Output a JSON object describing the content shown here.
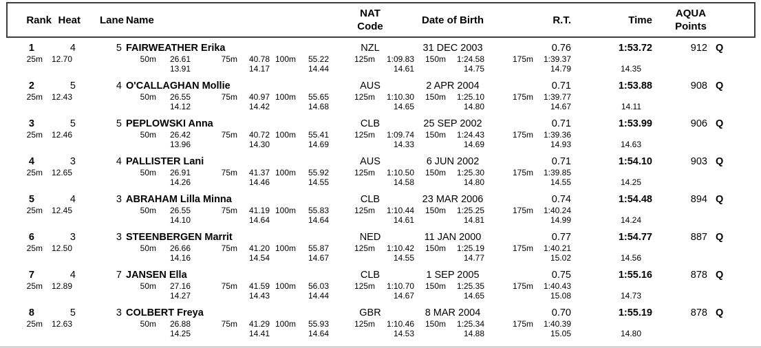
{
  "header": {
    "rank": "Rank",
    "heat": "Heat",
    "lane": "Lane",
    "name": "Name",
    "nat_line1": "NAT",
    "nat_line2": "Code",
    "dob": "Date of Birth",
    "rt": "R.T.",
    "time": "Time",
    "points_line1": "AQUA",
    "points_line2": "Points"
  },
  "split_labels": [
    "25m",
    "50m",
    "75m",
    "100m",
    "125m",
    "150m",
    "175m"
  ],
  "rows": [
    {
      "rank": "1",
      "heat": "4",
      "lane": "5",
      "name": "FAIRWEATHER Erika",
      "nat": "NZL",
      "dob": "31 DEC 2003",
      "rt": "0.76",
      "time": "1:53.72",
      "points": "912",
      "q": "Q",
      "splits": [
        "12.70",
        "26.61",
        "40.78",
        "55.22",
        "1:09.83",
        "1:24.58",
        "1:39.37"
      ],
      "laps": [
        "13.91",
        "14.17",
        "14.44",
        "14.61",
        "14.75",
        "14.79"
      ],
      "last_lap": "14.35"
    },
    {
      "rank": "2",
      "heat": "5",
      "lane": "4",
      "name": "O'CALLAGHAN Mollie",
      "nat": "AUS",
      "dob": "2 APR 2004",
      "rt": "0.71",
      "time": "1:53.88",
      "points": "908",
      "q": "Q",
      "splits": [
        "12.43",
        "26.55",
        "40.97",
        "55.65",
        "1:10.30",
        "1:25.10",
        "1:39.77"
      ],
      "laps": [
        "14.12",
        "14.42",
        "14.68",
        "14.65",
        "14.80",
        "14.67"
      ],
      "last_lap": "14.11"
    },
    {
      "rank": "3",
      "heat": "5",
      "lane": "5",
      "name": "PEPLOWSKI Anna",
      "nat": "CLB",
      "dob": "25 SEP 2002",
      "rt": "0.71",
      "time": "1:53.99",
      "points": "906",
      "q": "Q",
      "splits": [
        "12.46",
        "26.42",
        "40.72",
        "55.41",
        "1:09.74",
        "1:24.43",
        "1:39.36"
      ],
      "laps": [
        "13.96",
        "14.30",
        "14.69",
        "14.33",
        "14.69",
        "14.93"
      ],
      "last_lap": "14.63"
    },
    {
      "rank": "4",
      "heat": "3",
      "lane": "4",
      "name": "PALLISTER Lani",
      "nat": "AUS",
      "dob": "6 JUN 2002",
      "rt": "0.71",
      "time": "1:54.10",
      "points": "903",
      "q": "Q",
      "splits": [
        "12.65",
        "26.91",
        "41.37",
        "55.92",
        "1:10.50",
        "1:25.30",
        "1:39.85"
      ],
      "laps": [
        "14.26",
        "14.46",
        "14.55",
        "14.58",
        "14.80",
        "14.55"
      ],
      "last_lap": "14.25"
    },
    {
      "rank": "5",
      "heat": "4",
      "lane": "3",
      "name": "ABRAHAM Lilla Minna",
      "nat": "CLB",
      "dob": "23 MAR 2006",
      "rt": "0.74",
      "time": "1:54.48",
      "points": "894",
      "q": "Q",
      "splits": [
        "12.45",
        "26.55",
        "41.19",
        "55.83",
        "1:10.44",
        "1:25.25",
        "1:40.24"
      ],
      "laps": [
        "14.10",
        "14.64",
        "14.64",
        "14.61",
        "14.81",
        "14.99"
      ],
      "last_lap": "14.24"
    },
    {
      "rank": "6",
      "heat": "3",
      "lane": "3",
      "name": "STEENBERGEN Marrit",
      "nat": "NED",
      "dob": "11 JAN 2000",
      "rt": "0.77",
      "time": "1:54.77",
      "points": "887",
      "q": "Q",
      "splits": [
        "12.50",
        "26.66",
        "41.20",
        "55.87",
        "1:10.42",
        "1:25.19",
        "1:40.21"
      ],
      "laps": [
        "14.16",
        "14.54",
        "14.67",
        "14.55",
        "14.77",
        "15.02"
      ],
      "last_lap": "14.56"
    },
    {
      "rank": "7",
      "heat": "4",
      "lane": "7",
      "name": "JANSEN Ella",
      "nat": "CLB",
      "dob": "1 SEP 2005",
      "rt": "0.75",
      "time": "1:55.16",
      "points": "878",
      "q": "Q",
      "splits": [
        "12.89",
        "27.16",
        "41.59",
        "56.03",
        "1:10.70",
        "1:25.35",
        "1:40.43"
      ],
      "laps": [
        "14.27",
        "14.43",
        "14.44",
        "14.67",
        "14.65",
        "15.08"
      ],
      "last_lap": "14.73"
    },
    {
      "rank": "8",
      "heat": "5",
      "lane": "3",
      "name": "COLBERT Freya",
      "nat": "GBR",
      "dob": "8 MAR 2004",
      "rt": "0.70",
      "time": "1:55.19",
      "points": "878",
      "q": "Q",
      "splits": [
        "12.63",
        "26.88",
        "41.29",
        "55.93",
        "1:10.46",
        "1:25.34",
        "1:40.39"
      ],
      "laps": [
        "14.25",
        "14.41",
        "14.64",
        "14.53",
        "14.88",
        "15.05"
      ],
      "last_lap": "14.80"
    }
  ]
}
